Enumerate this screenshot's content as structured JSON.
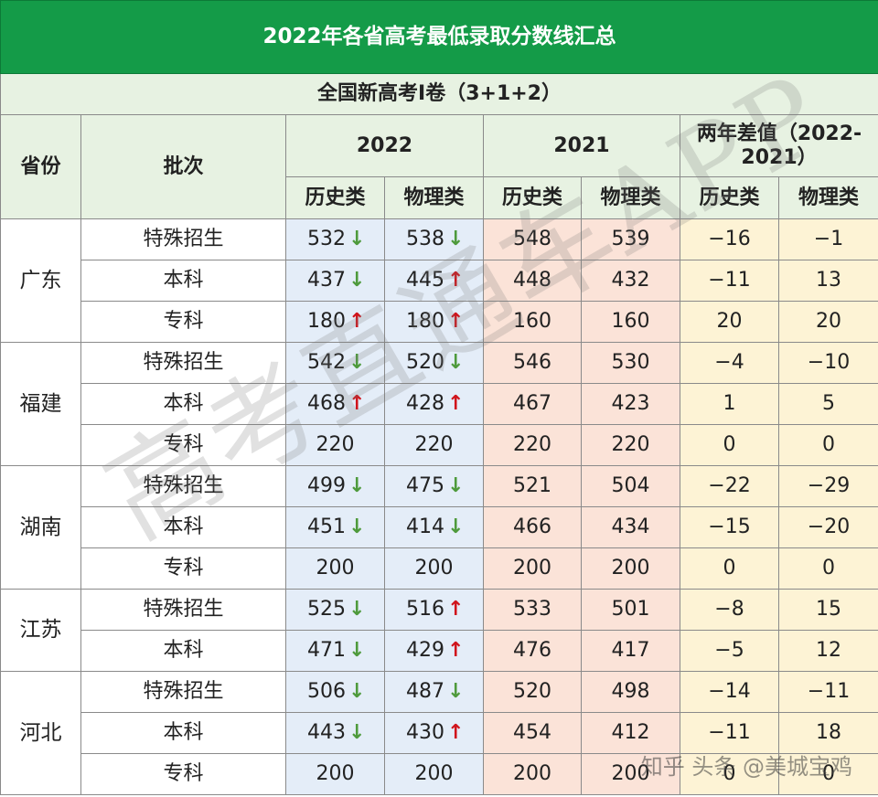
{
  "table": {
    "title": "2022年各省高考最低录取分数线汇总",
    "subtitle": "全国新高考Ⅰ卷（3+1+2）",
    "headers": {
      "province": "省份",
      "batch": "批次",
      "y2022": "2022",
      "y2021": "2021",
      "diff": "两年差值（2022-2021）",
      "history": "历史类",
      "physics": "物理类"
    },
    "provinces": [
      {
        "name": "广东",
        "rows": [
          {
            "batch": "特殊招生",
            "h22": "532",
            "h22dir": "down",
            "p22": "538",
            "p22dir": "down",
            "h21": "548",
            "p21": "539",
            "dh": "−16",
            "dp": "−1"
          },
          {
            "batch": "本科",
            "h22": "437",
            "h22dir": "down",
            "p22": "445",
            "p22dir": "up",
            "h21": "448",
            "p21": "432",
            "dh": "−11",
            "dp": "13"
          },
          {
            "batch": "专科",
            "h22": "180",
            "h22dir": "up",
            "p22": "180",
            "p22dir": "up",
            "h21": "160",
            "p21": "160",
            "dh": "20",
            "dp": "20"
          }
        ]
      },
      {
        "name": "福建",
        "rows": [
          {
            "batch": "特殊招生",
            "h22": "542",
            "h22dir": "down",
            "p22": "520",
            "p22dir": "down",
            "h21": "546",
            "p21": "530",
            "dh": "−4",
            "dp": "−10"
          },
          {
            "batch": "本科",
            "h22": "468",
            "h22dir": "up",
            "p22": "428",
            "p22dir": "up",
            "h21": "467",
            "p21": "423",
            "dh": "1",
            "dp": "5"
          },
          {
            "batch": "专科",
            "h22": "220",
            "h22dir": "",
            "p22": "220",
            "p22dir": "",
            "h21": "220",
            "p21": "220",
            "dh": "0",
            "dp": "0"
          }
        ]
      },
      {
        "name": "湖南",
        "rows": [
          {
            "batch": "特殊招生",
            "h22": "499",
            "h22dir": "down",
            "p22": "475",
            "p22dir": "down",
            "h21": "521",
            "p21": "504",
            "dh": "−22",
            "dp": "−29"
          },
          {
            "batch": "本科",
            "h22": "451",
            "h22dir": "down",
            "p22": "414",
            "p22dir": "down",
            "h21": "466",
            "p21": "434",
            "dh": "−15",
            "dp": "−20"
          },
          {
            "batch": "专科",
            "h22": "200",
            "h22dir": "",
            "p22": "200",
            "p22dir": "",
            "h21": "200",
            "p21": "200",
            "dh": "0",
            "dp": "0"
          }
        ]
      },
      {
        "name": "江苏",
        "rows": [
          {
            "batch": "特殊招生",
            "h22": "525",
            "h22dir": "down",
            "p22": "516",
            "p22dir": "up",
            "h21": "533",
            "p21": "501",
            "dh": "−8",
            "dp": "15"
          },
          {
            "batch": "本科",
            "h22": "471",
            "h22dir": "down",
            "p22": "429",
            "p22dir": "up",
            "h21": "476",
            "p21": "417",
            "dh": "−5",
            "dp": "12"
          }
        ]
      },
      {
        "name": "河北",
        "rows": [
          {
            "batch": "特殊招生",
            "h22": "506",
            "h22dir": "down",
            "p22": "487",
            "p22dir": "down",
            "h21": "520",
            "p21": "498",
            "dh": "−14",
            "dp": "−11"
          },
          {
            "batch": "本科",
            "h22": "443",
            "h22dir": "down",
            "p22": "430",
            "p22dir": "up",
            "h21": "454",
            "p21": "412",
            "dh": "−11",
            "dp": "18"
          },
          {
            "batch": "专科",
            "h22": "200",
            "h22dir": "",
            "p22": "200",
            "p22dir": "",
            "h21": "200",
            "p21": "200",
            "dh": "0",
            "dp": "0"
          }
        ]
      }
    ]
  },
  "arrows": {
    "up": "↑",
    "down": "↓"
  },
  "watermark": "高考直通车APP",
  "credit": "知乎 头条 @美城宝鸡",
  "colors": {
    "title_bg": "#149b48",
    "header_bg": "#e7f2e2",
    "col_2022_bg": "#e4edf8",
    "col_2021_bg": "#fbe3d8",
    "col_diff_bg": "#fdf3d5",
    "arrow_up": "#d0141c",
    "arrow_down": "#4e9a3c"
  }
}
